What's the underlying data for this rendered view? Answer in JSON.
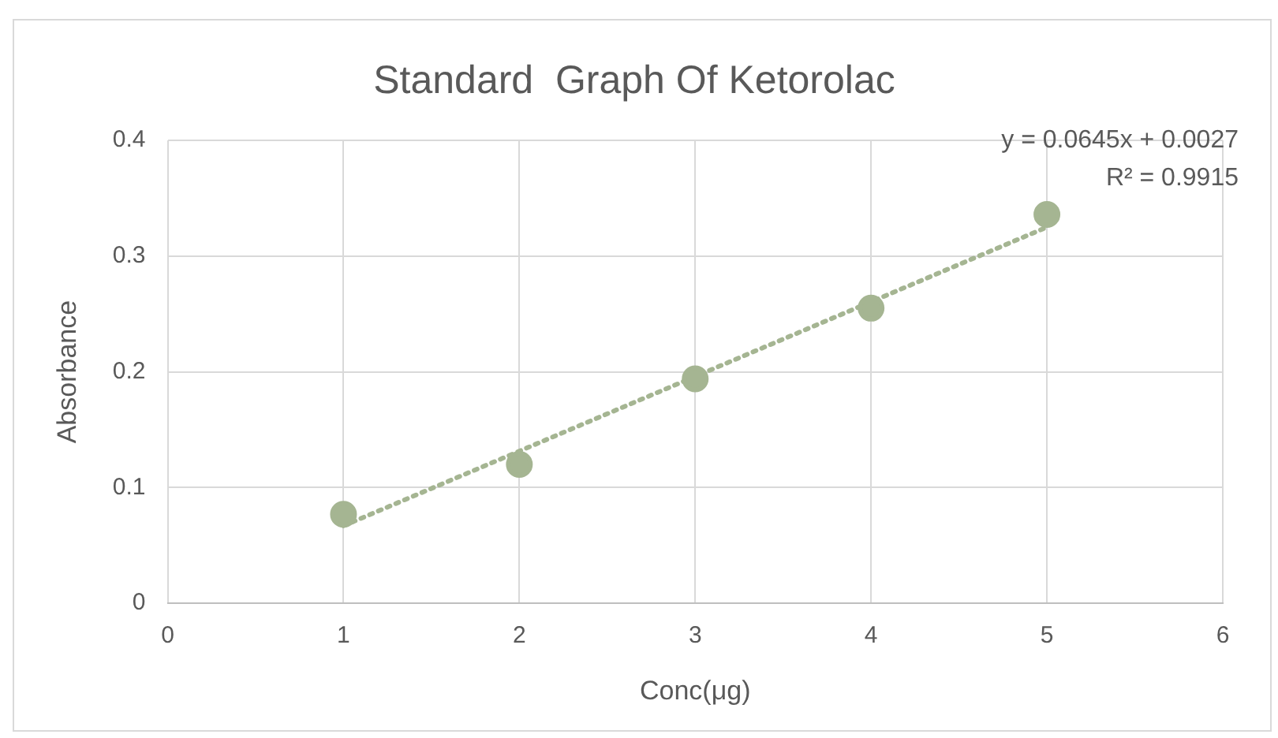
{
  "chart_data": {
    "type": "scatter",
    "title": "Standard  Graph Of Ketorolac",
    "xlabel": "Conc(μg)",
    "ylabel": "Absorbance",
    "xlim": [
      0,
      6
    ],
    "xticks": [
      0,
      1,
      2,
      3,
      4,
      5,
      6
    ],
    "ylim": [
      0,
      0.4
    ],
    "yticks": [
      0,
      0.1,
      0.2,
      0.3,
      0.4
    ],
    "grid": true,
    "legend": false,
    "marker": "circle",
    "series": [
      {
        "color": "#a5b592",
        "x": [
          1,
          2,
          3,
          4,
          5
        ],
        "values": [
          0.077,
          0.12,
          0.194,
          0.255,
          0.336
        ]
      },
      {
        "type": "line",
        "color": "#a5b592",
        "line_style": "dotted",
        "marker": "none",
        "x": [
          1,
          5
        ],
        "values": [
          0.067,
          0.325
        ]
      }
    ],
    "annotations": [
      "y = 0.0645x + 0.0027",
      "R² = 0.9915"
    ]
  }
}
